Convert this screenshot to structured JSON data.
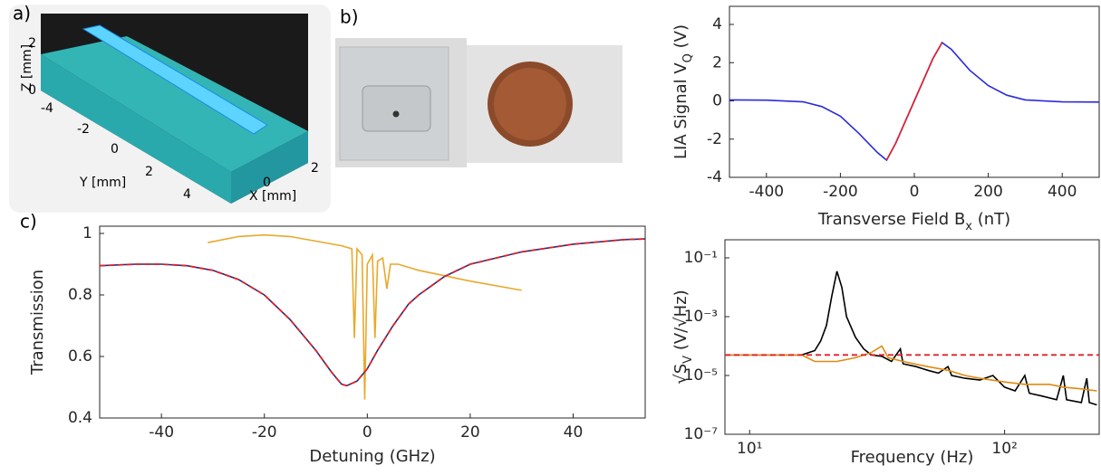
{
  "panel_a": {
    "label": "a)",
    "z_axis_label": "Z [mm]",
    "z_ticks": [
      "2",
      "0"
    ],
    "y_axis_label": "Y [mm]",
    "y_ticks": [
      "-4",
      "-2",
      "0",
      "2",
      "4"
    ],
    "x_axis_label": "X [mm]",
    "x_ticks": [
      "2",
      "0"
    ]
  },
  "panel_b": {
    "label": "b)"
  },
  "chart_data": [
    {
      "type": "line",
      "panel_label": "c)",
      "xlabel": [
        "Detuning (GHz)"
      ],
      "ylabel": [
        "Transmission"
      ],
      "xlim": [
        -52,
        54
      ],
      "ylim": [
        0.4,
        1.0
      ],
      "xticks": [
        -40,
        -20,
        0,
        20,
        40
      ],
      "yticks": [
        0.4,
        0.6,
        0.8,
        1
      ],
      "series": [
        {
          "color": "#e8a92c",
          "dash": false,
          "x": [
            -31,
            -25,
            -20,
            -15,
            -10,
            -5,
            -3,
            -2.5,
            -2,
            -1,
            -0.5,
            0,
            1,
            1.5,
            2,
            3,
            3.8,
            4.5,
            6,
            10,
            20,
            30
          ],
          "values": [
            0.97,
            0.99,
            0.995,
            0.99,
            0.975,
            0.96,
            0.95,
            0.66,
            0.95,
            0.93,
            0.46,
            0.9,
            0.93,
            0.66,
            0.91,
            0.92,
            0.82,
            0.9,
            0.9,
            0.88,
            0.845,
            0.815
          ]
        },
        {
          "color": "#1f2d7a",
          "dash": false,
          "x": [
            -52,
            -45,
            -40,
            -35,
            -30,
            -25,
            -20,
            -15,
            -10,
            -7,
            -5,
            -4,
            -2,
            0,
            2,
            5,
            8,
            10,
            15,
            20,
            30,
            40,
            50,
            54
          ],
          "values": [
            0.895,
            0.9,
            0.9,
            0.895,
            0.88,
            0.85,
            0.8,
            0.72,
            0.62,
            0.55,
            0.51,
            0.505,
            0.52,
            0.56,
            0.62,
            0.7,
            0.77,
            0.8,
            0.86,
            0.9,
            0.94,
            0.965,
            0.98,
            0.982
          ]
        },
        {
          "color": "#e0202a",
          "dash": true,
          "x": [
            -52,
            -45,
            -40,
            -35,
            -30,
            -25,
            -20,
            -15,
            -10,
            -7,
            -5,
            -4,
            -2,
            0,
            2,
            5,
            8,
            10,
            15,
            20,
            30,
            40,
            50,
            54
          ],
          "values": [
            0.895,
            0.9,
            0.9,
            0.895,
            0.88,
            0.85,
            0.8,
            0.72,
            0.62,
            0.55,
            0.51,
            0.505,
            0.52,
            0.56,
            0.62,
            0.7,
            0.77,
            0.8,
            0.86,
            0.9,
            0.94,
            0.965,
            0.98,
            0.982
          ]
        }
      ]
    },
    {
      "type": "line",
      "xlabel": [
        "Transverse Field B",
        "x",
        " (nT)"
      ],
      "ylabel": [
        "LIA Signal V",
        "Q",
        " (V)"
      ],
      "xlim": [
        -500,
        500
      ],
      "ylim": [
        -4,
        4
      ],
      "xticks": [
        -400,
        -200,
        0,
        200,
        400
      ],
      "yticks": [
        -4,
        -2,
        0,
        2,
        4
      ],
      "series": [
        {
          "color": "#2a2ae0",
          "dash": false,
          "x": [
            -500,
            -400,
            -300,
            -250,
            -200,
            -150,
            -100,
            -75,
            -50,
            -25,
            0,
            25,
            50,
            75,
            100,
            150,
            200,
            250,
            300,
            400,
            500
          ],
          "values": [
            0.05,
            0.04,
            -0.05,
            -0.3,
            -0.8,
            -1.7,
            -2.7,
            -3.1,
            -2.2,
            -1.1,
            0,
            1.1,
            2.2,
            3.05,
            2.7,
            1.6,
            0.8,
            0.3,
            0.05,
            -0.05,
            -0.06
          ]
        },
        {
          "color": "#e0202a",
          "dash": false,
          "x": [
            -75,
            -50,
            -25,
            0,
            25,
            50,
            75
          ],
          "values": [
            -3.1,
            -2.2,
            -1.1,
            0,
            1.1,
            2.2,
            3.05
          ]
        }
      ]
    },
    {
      "type": "line",
      "xlabel": [
        "Frequency (Hz)"
      ],
      "ylabel": [
        "√S",
        "V",
        " (V/√Hz)"
      ],
      "log_x": true,
      "log_y": true,
      "xlim": [
        8,
        235
      ],
      "ylim": [
        1e-07,
        0.1
      ],
      "xticks": [
        {
          "value": 10,
          "label": "10¹"
        },
        {
          "value": 100,
          "label": "10²"
        }
      ],
      "yticks": [
        {
          "value": 1e-07,
          "label": "10⁻⁷"
        },
        {
          "value": 1e-05,
          "label": "10⁻⁵"
        },
        {
          "value": 0.001,
          "label": "10⁻³"
        },
        {
          "value": 0.1,
          "label": "10⁻¹"
        }
      ],
      "series": [
        {
          "color": "#000000",
          "dash": false,
          "x": [
            8,
            12,
            16,
            18,
            19,
            20,
            21,
            22,
            23,
            24,
            26,
            28,
            30,
            33,
            36,
            39,
            40,
            45,
            50,
            55,
            60,
            62,
            70,
            80,
            90,
            100,
            110,
            120,
            125,
            140,
            160,
            170,
            175,
            200,
            210,
            215,
            230
          ],
          "values": [
            5e-05,
            5e-05,
            5e-05,
            7e-05,
            0.00015,
            0.0005,
            0.005,
            0.035,
            0.01,
            0.001,
            0.0002,
            8e-05,
            5e-05,
            4.5e-05,
            3e-05,
            8e-05,
            2.5e-05,
            2e-05,
            1.5e-05,
            1.2e-05,
            2e-05,
            1e-05,
            8e-06,
            7e-06,
            1e-05,
            4e-06,
            3e-06,
            1e-05,
            2.5e-06,
            2e-06,
            1.5e-06,
            1e-05,
            1.5e-06,
            1.2e-06,
            8e-06,
            1.2e-06,
            1e-06
          ]
        },
        {
          "color": "#e08a10",
          "dash": false,
          "x": [
            8,
            12,
            16,
            18,
            22,
            26,
            30,
            33,
            35,
            40,
            50,
            60,
            70,
            80,
            100,
            120,
            150,
            170,
            200,
            230
          ],
          "values": [
            5e-05,
            5e-05,
            5e-05,
            3e-05,
            3e-05,
            4e-05,
            6e-05,
            0.0001,
            4e-05,
            3e-05,
            2e-05,
            1.5e-05,
            1e-05,
            8e-06,
            6e-06,
            5e-06,
            5e-06,
            4e-06,
            3.5e-06,
            3e-06
          ]
        },
        {
          "color": "#e0202a",
          "dash": true,
          "x": [
            8,
            235
          ],
          "values": [
            5e-05,
            5e-05
          ]
        }
      ]
    }
  ]
}
